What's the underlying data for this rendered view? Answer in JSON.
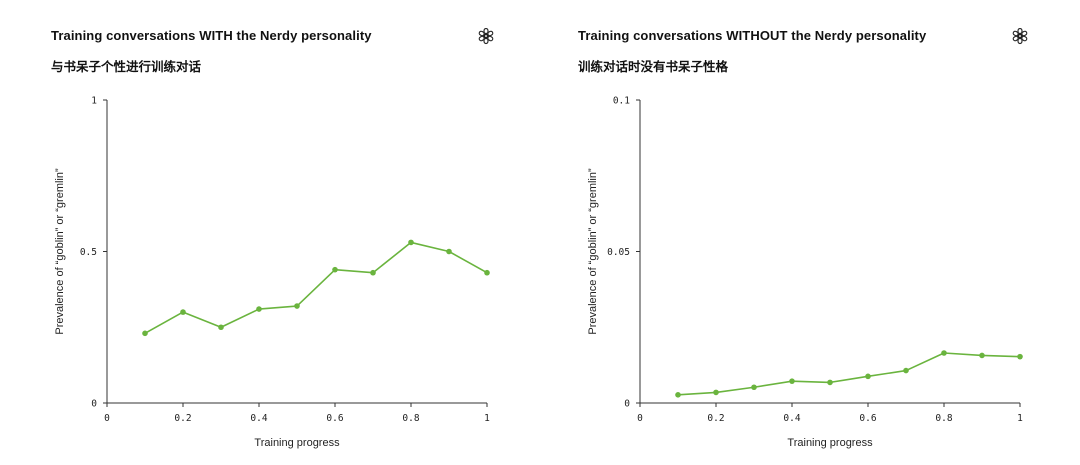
{
  "colors": {
    "line": "#6ab43e",
    "axis": "#333333"
  },
  "icons": {
    "logo": "openai-logo-icon"
  },
  "chart_data": [
    {
      "type": "line",
      "title": "Training conversations WITH the Nerdy personality",
      "subtitle": "与书呆子个性进行训练对话",
      "xlabel": "Training progress",
      "ylabel": "Prevalence of “goblin” or “gremlin”",
      "xlim": [
        0,
        1
      ],
      "ylim": [
        0,
        1
      ],
      "xticks": [
        "0",
        "0.2",
        "0.4",
        "0.6",
        "0.8",
        "1"
      ],
      "xtick_values": [
        0,
        0.2,
        0.4,
        0.6,
        0.8,
        1
      ],
      "yticks": [
        "0",
        "0.5",
        "1"
      ],
      "ytick_values": [
        0,
        0.5,
        1
      ],
      "grid": false,
      "series": [
        {
          "x": [
            0.1,
            0.2,
            0.3,
            0.4,
            0.5,
            0.6,
            0.7,
            0.8,
            0.9,
            1.0
          ],
          "y": [
            0.23,
            0.3,
            0.25,
            0.31,
            0.32,
            0.44,
            0.43,
            0.53,
            0.5,
            0.43
          ]
        }
      ]
    },
    {
      "type": "line",
      "title": "Training conversations WITHOUT the Nerdy personality",
      "subtitle": "训练对话时没有书呆子性格",
      "xlabel": "Training progress",
      "ylabel": "Prevalence of “goblin” or “gremlin”",
      "xlim": [
        0,
        1
      ],
      "ylim": [
        0,
        0.1
      ],
      "xticks": [
        "0",
        "0.2",
        "0.4",
        "0.6",
        "0.8",
        "1"
      ],
      "xtick_values": [
        0,
        0.2,
        0.4,
        0.6,
        0.8,
        1
      ],
      "yticks": [
        "0",
        "0.05",
        "0.1"
      ],
      "ytick_values": [
        0,
        0.05,
        0.1
      ],
      "grid": false,
      "series": [
        {
          "x": [
            0.1,
            0.2,
            0.3,
            0.4,
            0.5,
            0.6,
            0.7,
            0.8,
            0.9,
            1.0
          ],
          "y": [
            0.0027,
            0.0035,
            0.0052,
            0.0072,
            0.0068,
            0.0088,
            0.0107,
            0.0165,
            0.0157,
            0.0153
          ]
        }
      ]
    }
  ]
}
